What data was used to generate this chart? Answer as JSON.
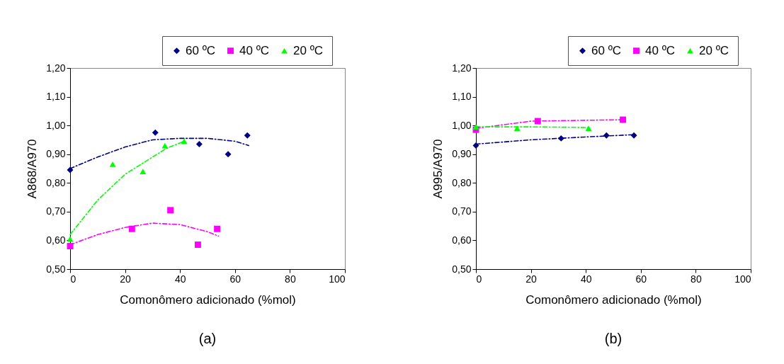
{
  "chart_data": [
    {
      "type": "scatter",
      "title": "(a)",
      "xlabel": "Comonômero adicionado (%mol)",
      "ylabel": "A868/A970",
      "xlim": [
        0,
        100
      ],
      "xticks": [
        0,
        20,
        40,
        60,
        80,
        100
      ],
      "ylim": [
        0.5,
        1.2
      ],
      "yticks": [
        {
          "value": 0.5,
          "label": "0,50"
        },
        {
          "value": 0.6,
          "label": "0,60"
        },
        {
          "value": 0.7,
          "label": "0,70"
        },
        {
          "value": 0.8,
          "label": "0,80"
        },
        {
          "value": 0.9,
          "label": "0,90"
        },
        {
          "value": 1.0,
          "label": "1,00"
        },
        {
          "value": 1.1,
          "label": "1,10"
        },
        {
          "value": 1.2,
          "label": "1,20"
        }
      ],
      "grid": false,
      "legend": "top right",
      "series": [
        {
          "type": "line",
          "color": "#000080",
          "line_style": "dashed",
          "marker": "none",
          "x": [
            0,
            10,
            20,
            30,
            40,
            50,
            60,
            65
          ],
          "values": [
            0.85,
            0.89,
            0.925,
            0.95,
            0.955,
            0.955,
            0.945,
            0.93
          ]
        },
        {
          "type": "line",
          "color": "#ff00ff",
          "line_style": "dashed",
          "marker": "none",
          "x": [
            0,
            10,
            20,
            30,
            40,
            50,
            54
          ],
          "values": [
            0.585,
            0.62,
            0.645,
            0.66,
            0.655,
            0.63,
            0.615
          ]
        },
        {
          "type": "line",
          "color": "#00ff00",
          "line_style": "dashed",
          "marker": "none",
          "x": [
            0,
            10,
            20,
            30,
            35,
            41.5
          ],
          "values": [
            0.62,
            0.74,
            0.83,
            0.89,
            0.92,
            0.945
          ]
        },
        {
          "type": "scatter",
          "name": "60 ºC",
          "color": "#000080",
          "marker": "diamond",
          "x": [
            0,
            31,
            47,
            57.5,
            64.5
          ],
          "values": [
            0.845,
            0.975,
            0.935,
            0.9,
            0.965
          ]
        },
        {
          "type": "scatter",
          "name": "40 ºC",
          "color": "#ff00ff",
          "marker": "square",
          "x": [
            0,
            22.5,
            36.5,
            46.5,
            53.5
          ],
          "values": [
            0.58,
            0.64,
            0.705,
            0.585,
            0.64
          ]
        },
        {
          "type": "scatter",
          "name": "20 ºC",
          "color": "#00ff00",
          "marker": "triangle",
          "x": [
            0,
            15.5,
            26.5,
            34.5,
            41.5
          ],
          "values": [
            0.605,
            0.865,
            0.84,
            0.93,
            0.945
          ]
        }
      ]
    },
    {
      "type": "scatter",
      "title": "(b)",
      "xlabel": "Comonômero adicionado (%mol)",
      "ylabel": "A995/A970",
      "xlim": [
        0,
        100
      ],
      "xticks": [
        0,
        20,
        40,
        60,
        80,
        100
      ],
      "ylim": [
        0.5,
        1.2
      ],
      "yticks": [
        {
          "value": 0.5,
          "label": "0,50"
        },
        {
          "value": 0.6,
          "label": "0,60"
        },
        {
          "value": 0.7,
          "label": "0,70"
        },
        {
          "value": 0.8,
          "label": "0,80"
        },
        {
          "value": 0.9,
          "label": "0,90"
        },
        {
          "value": 1.0,
          "label": "1,00"
        },
        {
          "value": 1.1,
          "label": "1,10"
        },
        {
          "value": 1.2,
          "label": "1,20"
        }
      ],
      "grid": false,
      "legend": "top right",
      "series": [
        {
          "type": "line",
          "color": "#000080",
          "line_style": "dashed",
          "marker": "none",
          "x": [
            0,
            20,
            40,
            58
          ],
          "values": [
            0.935,
            0.95,
            0.96,
            0.968
          ]
        },
        {
          "type": "line",
          "color": "#ff00ff",
          "line_style": "dashed",
          "marker": "none",
          "x": [
            0,
            20,
            54
          ],
          "values": [
            0.99,
            1.015,
            1.02
          ]
        },
        {
          "type": "line",
          "color": "#00ff00",
          "line_style": "dashed",
          "marker": "none",
          "x": [
            0,
            20,
            41
          ],
          "values": [
            0.995,
            0.995,
            0.993
          ]
        },
        {
          "type": "scatter",
          "name": "60 ºC",
          "color": "#000080",
          "marker": "diamond",
          "x": [
            0,
            31,
            47.5,
            57.5
          ],
          "values": [
            0.93,
            0.955,
            0.965,
            0.965
          ]
        },
        {
          "type": "scatter",
          "name": "40 ºC",
          "color": "#ff00ff",
          "marker": "square",
          "x": [
            0,
            22.5,
            53.5
          ],
          "values": [
            0.985,
            1.015,
            1.02
          ]
        },
        {
          "type": "scatter",
          "name": "20 ºC",
          "color": "#00ff00",
          "marker": "triangle",
          "x": [
            0,
            15,
            41
          ],
          "values": [
            0.995,
            0.99,
            0.99
          ]
        }
      ]
    }
  ]
}
